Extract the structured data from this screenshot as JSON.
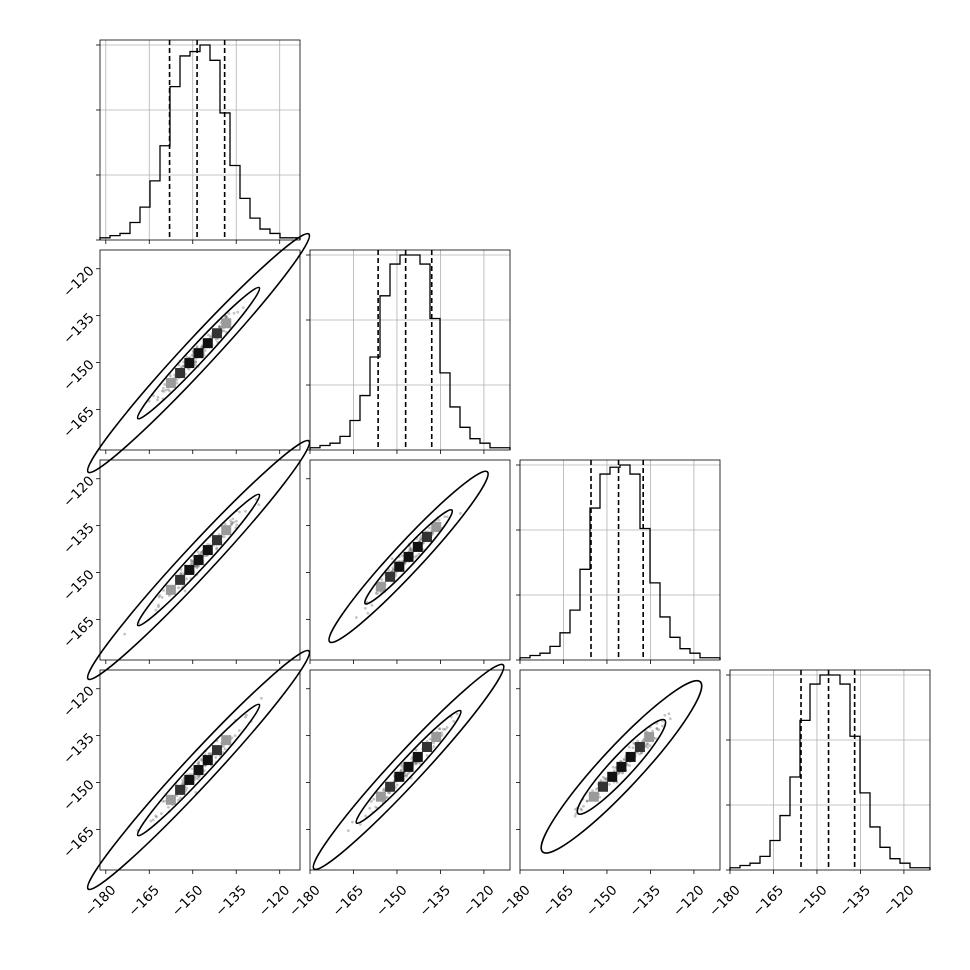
{
  "chart_data": {
    "type": "corner",
    "n_params": 4,
    "tick_values": [
      -180,
      -165,
      -150,
      -135,
      -120
    ],
    "tick_labels": [
      "−180",
      "−165",
      "−150",
      "−135",
      "−120"
    ],
    "grid": true,
    "colors": {
      "line": "#000000",
      "grid": "#b0b0b0",
      "points": "#555555"
    },
    "panels": [
      {
        "param": 1,
        "range": [
          -182,
          -113
        ],
        "hist_counts": [
          1,
          2,
          3,
          8,
          15,
          27,
          43,
          70,
          84,
          86,
          89,
          82,
          58,
          34,
          19,
          10,
          5,
          3,
          1,
          1
        ],
        "quantiles": [
          -158.0,
          -148.5,
          -139.0
        ]
      },
      {
        "param": 2,
        "range": [
          -180,
          -111
        ],
        "hist_counts": [
          1,
          2,
          3,
          6,
          13,
          24,
          41,
          68,
          82,
          86,
          86,
          82,
          58,
          34,
          19,
          10,
          5,
          3,
          1,
          1
        ],
        "quantiles": [
          -156.5,
          -147.0,
          -138.0
        ]
      },
      {
        "param": 3,
        "range": [
          -180,
          -111
        ],
        "hist_counts": [
          1,
          2,
          3,
          6,
          12,
          22,
          40,
          67,
          82,
          85,
          86,
          82,
          58,
          34,
          19,
          10,
          5,
          3,
          1,
          1
        ],
        "quantiles": [
          -155.5,
          -146.0,
          -137.5
        ]
      },
      {
        "param": 4,
        "range": [
          -180,
          -111
        ],
        "hist_counts": [
          1,
          2,
          3,
          6,
          13,
          24,
          41,
          66,
          82,
          86,
          86,
          82,
          59,
          34,
          19,
          10,
          5,
          3,
          1,
          1
        ],
        "quantiles": [
          -155.5,
          -146.0,
          -137.0
        ]
      }
    ],
    "pairs": [
      {
        "x_param": 1,
        "y_param": 2,
        "x_range": [
          -182,
          -113
        ],
        "y_range": [
          -178,
          -114
        ],
        "center": [
          -148,
          -147
        ],
        "major_axis": 56,
        "minor_axis": 5.2
      },
      {
        "x_param": 1,
        "y_param": 3,
        "x_range": [
          -182,
          -113
        ],
        "y_range": [
          -178,
          -114
        ],
        "center": [
          -148,
          -146
        ],
        "major_axis": 56,
        "minor_axis": 5.2
      },
      {
        "x_param": 2,
        "y_param": 3,
        "x_range": [
          -180,
          -111
        ],
        "y_range": [
          -178,
          -114
        ],
        "center": [
          -146,
          -145
        ],
        "major_axis": 40,
        "minor_axis": 5.0
      },
      {
        "x_param": 1,
        "y_param": 4,
        "x_range": [
          -182,
          -113
        ],
        "y_range": [
          -178,
          -114
        ],
        "center": [
          -148,
          -146
        ],
        "major_axis": 56,
        "minor_axis": 5.2
      },
      {
        "x_param": 2,
        "y_param": 4,
        "x_range": [
          -180,
          -111
        ],
        "y_range": [
          -178,
          -114
        ],
        "center": [
          -146,
          -145
        ],
        "major_axis": 48,
        "minor_axis": 5.2
      },
      {
        "x_param": 3,
        "y_param": 4,
        "x_range": [
          -180,
          -111
        ],
        "y_range": [
          -178,
          -114
        ],
        "center": [
          -145,
          -145
        ],
        "major_axis": 40,
        "minor_axis": 7.0
      }
    ]
  }
}
